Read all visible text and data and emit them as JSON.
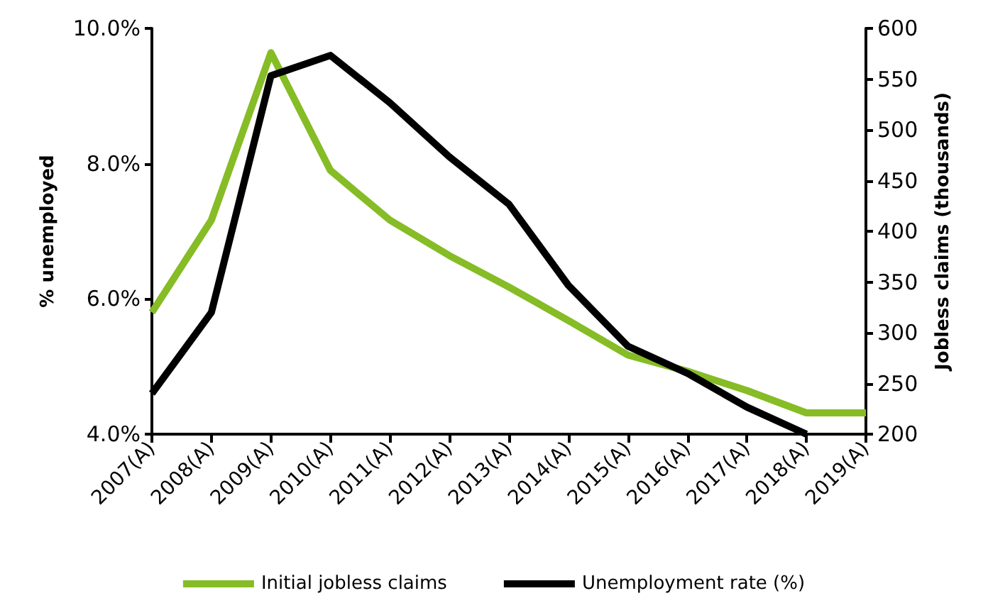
{
  "chart_data": {
    "type": "line",
    "ylabel": "% unemployed",
    "y2label": "Jobless claims (thousands)",
    "categories": [
      "2007(A)",
      "2008(A)",
      "2009(A)",
      "2010(A)",
      "2011(A)",
      "2012(A)",
      "2013(A)",
      "2014(A)",
      "2015(A)",
      "2016(A)",
      "2017(A)",
      "2018(A)",
      "2019(A)"
    ],
    "series": [
      {
        "name": "Initial jobless claims",
        "color": "#86bc25",
        "axis": "y2",
        "values": [
          320,
          411,
          576,
          460,
          411,
          376,
          345,
          312,
          278,
          262,
          243,
          221,
          221
        ]
      },
      {
        "name": "Unemployment rate (%)",
        "color": "#000000",
        "values": [
          4.6,
          5.8,
          9.3,
          9.6,
          8.9,
          8.1,
          7.4,
          6.2,
          5.3,
          4.9,
          4.4,
          4.0,
          null
        ]
      }
    ],
    "ylim": [
      4,
      10
    ],
    "yticks": [
      {
        "value": 4,
        "label": "4.0%"
      },
      {
        "value": 6,
        "label": "6.0%"
      },
      {
        "value": 8,
        "label": "8.0%"
      },
      {
        "value": 10,
        "label": "10.0%"
      }
    ],
    "y2lim": [
      200,
      600
    ],
    "y2ticks": [
      200,
      250,
      300,
      350,
      400,
      450,
      500,
      550,
      600
    ],
    "grid": false,
    "legend": "bottom",
    "marker": "none",
    "line_style": "solid"
  }
}
